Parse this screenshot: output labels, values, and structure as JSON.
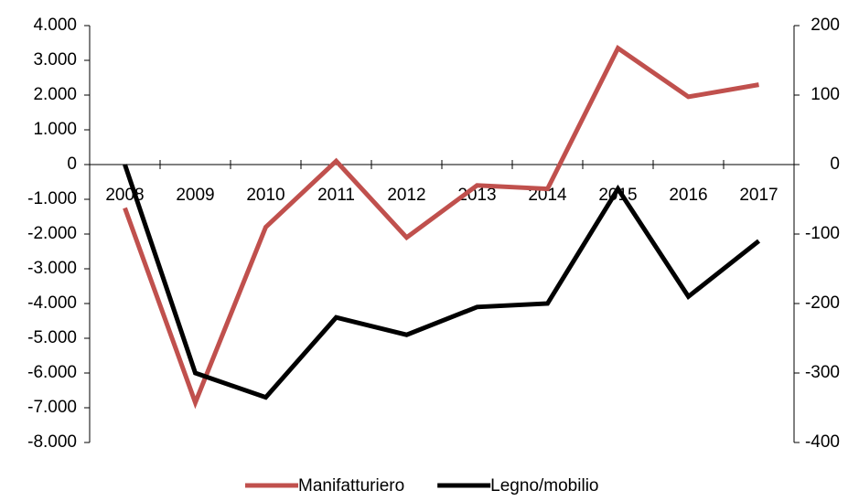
{
  "chart_data": {
    "type": "line",
    "categories": [
      "2008",
      "2009",
      "2010",
      "2011",
      "2012",
      "2013",
      "2014",
      "2015",
      "2016",
      "2017"
    ],
    "series": [
      {
        "name": "Manifatturiero",
        "color": "#c0504d",
        "values": [
          -1250,
          -6850,
          -1800,
          100,
          -2100,
          -600,
          -700,
          3350,
          1950,
          2300
        ]
      },
      {
        "name": "Legno/mobilio",
        "color": "#000000",
        "axis": "y2",
        "values": [
          0,
          -300,
          -335,
          -220,
          -245,
          -205,
          -200,
          -35,
          -190,
          -110
        ]
      }
    ],
    "ylim": [
      -8000,
      4000
    ],
    "yticks": [
      {
        "value": -8000,
        "label": "-8.000"
      },
      {
        "value": -7000,
        "label": "-7.000"
      },
      {
        "value": -6000,
        "label": "-6.000"
      },
      {
        "value": -5000,
        "label": "-5.000"
      },
      {
        "value": -4000,
        "label": "-4.000"
      },
      {
        "value": -3000,
        "label": "-3.000"
      },
      {
        "value": -2000,
        "label": "-2.000"
      },
      {
        "value": -1000,
        "label": "-1.000"
      },
      0,
      {
        "value": 1000,
        "label": "1.000"
      },
      {
        "value": 2000,
        "label": "2.000"
      },
      {
        "value": 3000,
        "label": "3.000"
      },
      {
        "value": 4000,
        "label": "4.000"
      }
    ],
    "y2lim": [
      -400,
      200
    ],
    "y2ticks": [
      -400,
      -300,
      -200,
      -100,
      0,
      100,
      200
    ],
    "legend": "bottom"
  }
}
